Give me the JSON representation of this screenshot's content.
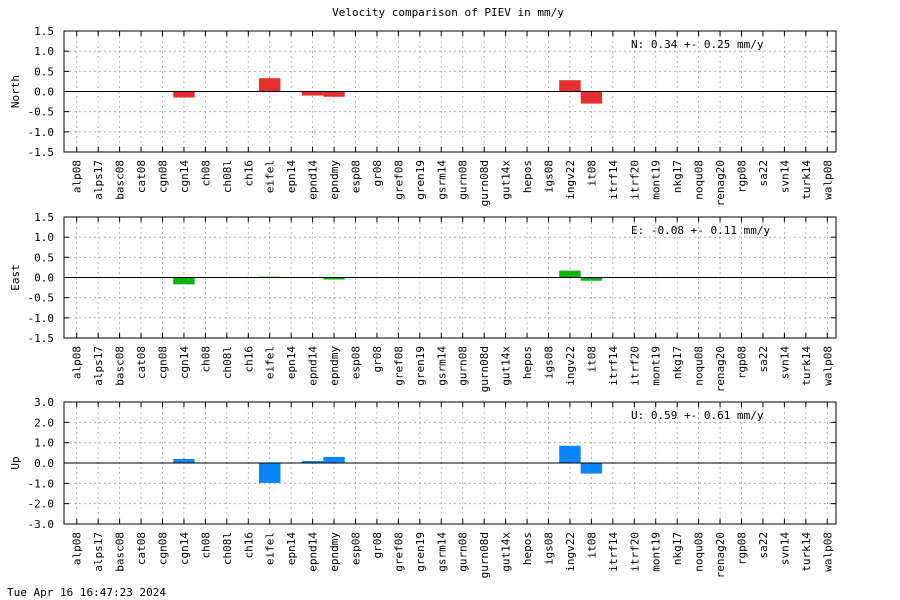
{
  "chart_data": {
    "type": "bar",
    "title": "Velocity comparison of PIEV in mm/y",
    "categories": [
      "alp08",
      "alps17",
      "basc08",
      "cat08",
      "cgn08",
      "cgn14",
      "ch08",
      "ch08l",
      "ch16",
      "eifel",
      "epn14",
      "epnd14",
      "epndmy",
      "esp08",
      "gr08",
      "gref08",
      "gren19",
      "gsrm14",
      "gurn08",
      "gurn08d",
      "gut14x",
      "hepos",
      "igs08",
      "ingv22",
      "it08",
      "itrf14",
      "itrf20",
      "mont19",
      "nkg17",
      "noqu08",
      "renag20",
      "rgp08",
      "sa22",
      "svn14",
      "turk14",
      "walp08"
    ],
    "panels": [
      {
        "ylabel": "North",
        "ylim": [
          -1.5,
          1.5
        ],
        "yticks": [
          "1.5",
          "1.0",
          "0.5",
          "0.0",
          "-0.5",
          "-1.0",
          "-1.5"
        ],
        "yvals": [
          1.5,
          1.0,
          0.5,
          0.0,
          -0.5,
          -1.0,
          -1.5
        ],
        "color": "#e52e2e",
        "annotation": "N:   0.34 +-  0.25 mm/y",
        "values": [
          null,
          null,
          null,
          null,
          null,
          -0.15,
          null,
          null,
          null,
          0.33,
          null,
          -0.1,
          -0.13,
          null,
          null,
          null,
          null,
          null,
          null,
          null,
          null,
          null,
          null,
          0.28,
          -0.3,
          null,
          null,
          null,
          null,
          null,
          null,
          null,
          null,
          null,
          null,
          null
        ]
      },
      {
        "ylabel": "East",
        "ylim": [
          -1.5,
          1.5
        ],
        "yticks": [
          "1.5",
          "1.0",
          "0.5",
          "0.0",
          "-0.5",
          "-1.0",
          "-1.5"
        ],
        "yvals": [
          1.5,
          1.0,
          0.5,
          0.0,
          -0.5,
          -1.0,
          -1.5
        ],
        "color": "#0cb40c",
        "annotation": "E:  -0.08 +-  0.11 mm/y",
        "values": [
          null,
          null,
          null,
          null,
          null,
          -0.17,
          null,
          null,
          null,
          0.02,
          null,
          null,
          -0.05,
          null,
          null,
          null,
          null,
          null,
          null,
          null,
          null,
          null,
          null,
          0.17,
          -0.08,
          null,
          null,
          null,
          null,
          null,
          null,
          null,
          null,
          null,
          null,
          null
        ]
      },
      {
        "ylabel": "Up",
        "ylim": [
          -3.0,
          3.0
        ],
        "yticks": [
          "3.0",
          "2.0",
          "1.0",
          "0.0",
          "-1.0",
          "-2.0",
          "-3.0"
        ],
        "yvals": [
          3.0,
          2.0,
          1.0,
          0.0,
          -1.0,
          -2.0,
          -3.0
        ],
        "color": "#0a84ff",
        "annotation": "U:   0.59 +-  0.61 mm/y",
        "values": [
          null,
          null,
          null,
          null,
          null,
          0.2,
          null,
          null,
          null,
          -0.98,
          null,
          0.1,
          0.3,
          null,
          null,
          null,
          null,
          null,
          null,
          null,
          null,
          null,
          null,
          0.85,
          -0.52,
          null,
          null,
          null,
          null,
          null,
          null,
          null,
          null,
          null,
          null,
          null
        ]
      }
    ],
    "grid": true
  },
  "footer": {
    "timestamp": "Tue Apr 16 16:47:23 2024"
  }
}
